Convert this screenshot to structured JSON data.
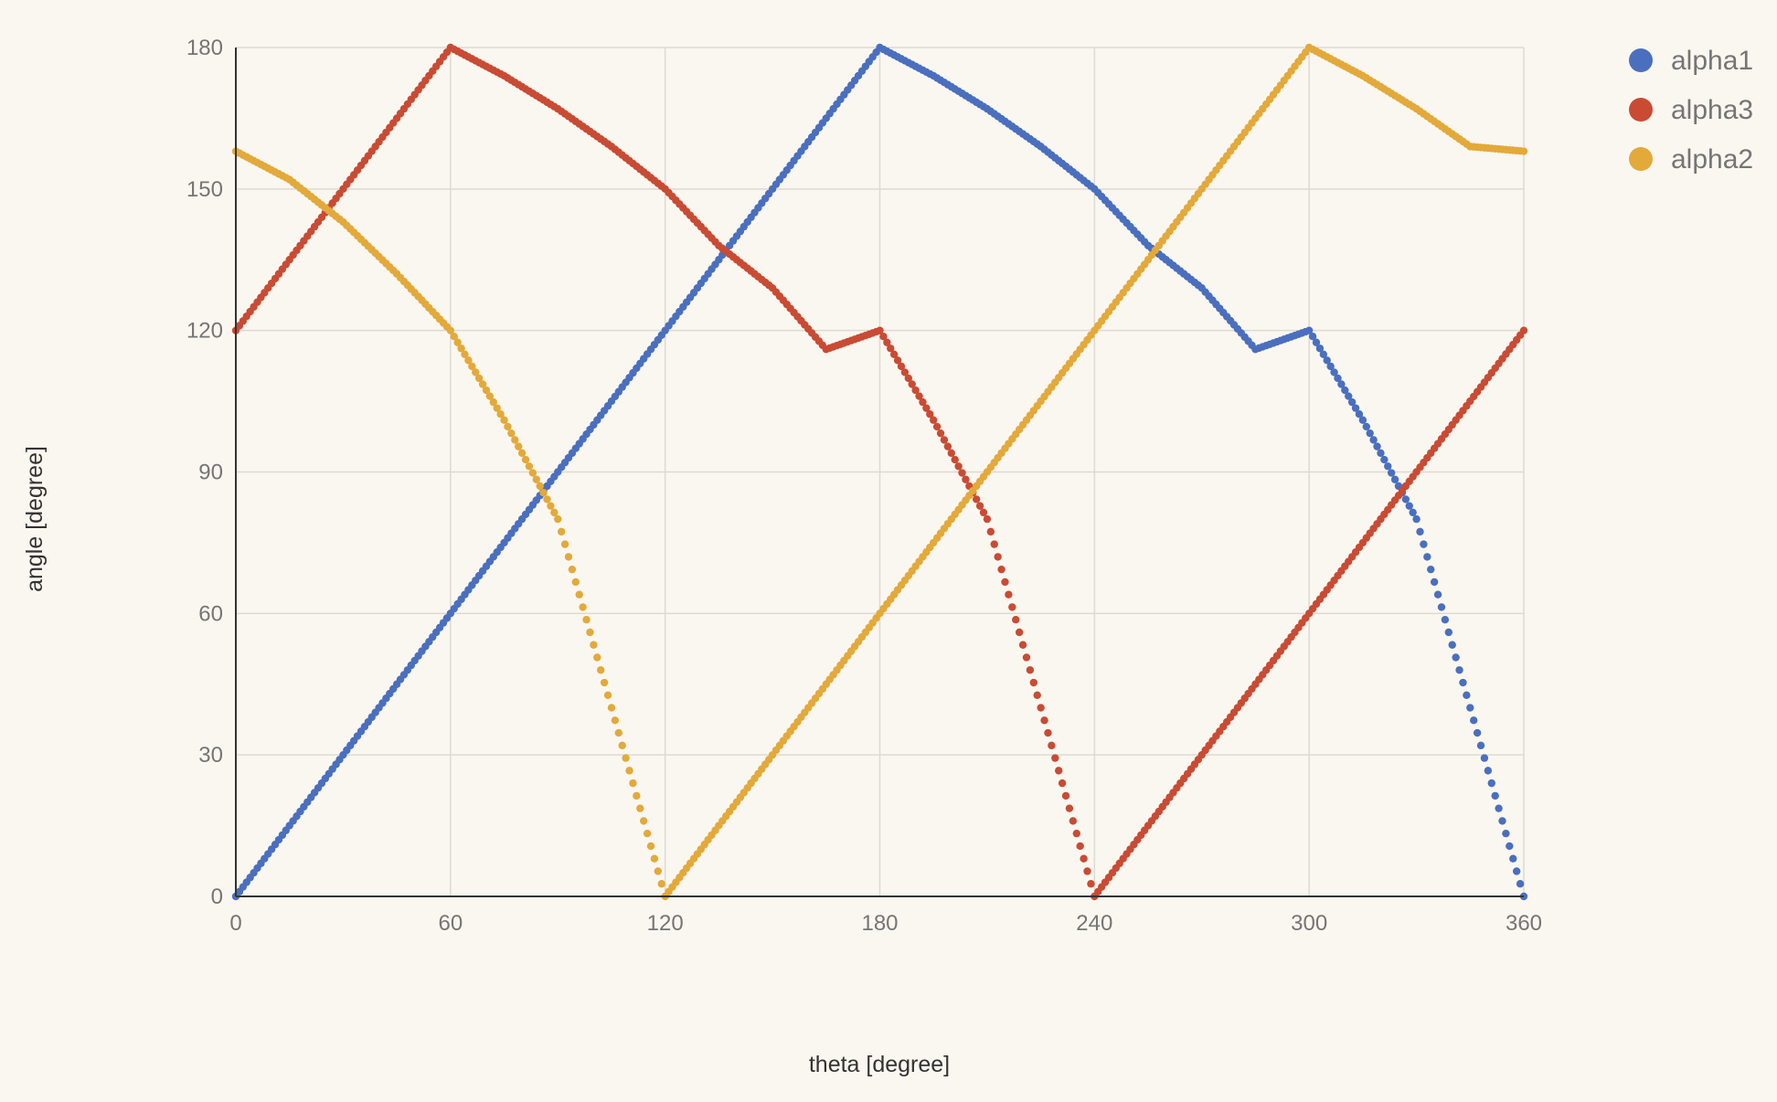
{
  "chart_data": {
    "type": "scatter",
    "xlabel": "theta [degree]",
    "ylabel": "angle [degree]",
    "xlim": [
      0,
      360
    ],
    "ylim": [
      0,
      180
    ],
    "x_ticks": [
      "0",
      "60",
      "120",
      "180",
      "240",
      "300",
      "360"
    ],
    "y_ticks": [
      "0",
      "30",
      "60",
      "90",
      "120",
      "150",
      "180"
    ],
    "grid": true,
    "legend_position": "top-right",
    "legend": [
      "alpha1",
      "alpha3",
      "alpha2"
    ],
    "colors": {
      "alpha1": "#4a6fbf",
      "alpha3": "#c94b34",
      "alpha2": "#e3a93a"
    },
    "series": [
      {
        "name": "alpha1",
        "x": [
          0,
          15,
          30,
          45,
          60,
          75,
          90,
          105,
          120,
          135,
          150,
          165,
          180,
          195,
          210,
          225,
          240,
          255,
          270,
          285,
          300,
          315,
          330,
          345,
          360
        ],
        "y": [
          0,
          15,
          30,
          45,
          60,
          75,
          90,
          105,
          120,
          135,
          150,
          165,
          180,
          174,
          167,
          159,
          150,
          138,
          129,
          116,
          120,
          101,
          80,
          40,
          0
        ]
      },
      {
        "name": "alpha3",
        "x": [
          0,
          15,
          30,
          45,
          60,
          75,
          90,
          105,
          120,
          135,
          150,
          165,
          180,
          195,
          210,
          225,
          240,
          255,
          270,
          285,
          300,
          315,
          330,
          345,
          360
        ],
        "y": [
          120,
          135,
          150,
          165,
          180,
          174,
          167,
          159,
          150,
          138,
          129,
          116,
          120,
          101,
          80,
          40,
          0,
          15,
          30,
          45,
          60,
          75,
          90,
          105,
          120
        ]
      },
      {
        "name": "alpha2",
        "x": [
          0,
          15,
          30,
          45,
          60,
          75,
          90,
          105,
          120,
          135,
          150,
          165,
          180,
          195,
          210,
          225,
          240,
          255,
          270,
          285,
          300,
          315,
          330,
          345,
          360
        ],
        "y": [
          158,
          152,
          143,
          132,
          120,
          101,
          80,
          40,
          0,
          15,
          30,
          45,
          60,
          75,
          90,
          105,
          120,
          135,
          150,
          165,
          180,
          174,
          167,
          159,
          158
        ]
      }
    ]
  }
}
